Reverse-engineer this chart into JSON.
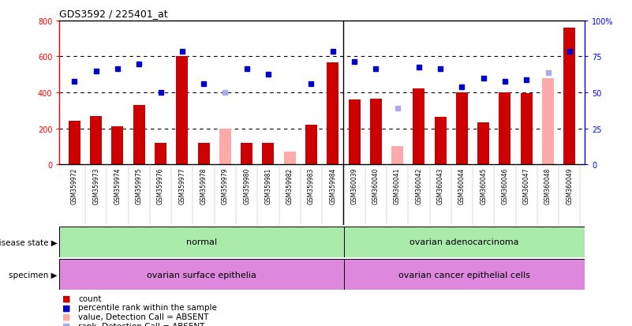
{
  "title": "GDS3592 / 225401_at",
  "samples": [
    "GSM359972",
    "GSM359973",
    "GSM359974",
    "GSM359975",
    "GSM359976",
    "GSM359977",
    "GSM359978",
    "GSM359979",
    "GSM359980",
    "GSM359981",
    "GSM359982",
    "GSM359983",
    "GSM359984",
    "GSM360039",
    "GSM360040",
    "GSM360041",
    "GSM360042",
    "GSM360043",
    "GSM360044",
    "GSM360045",
    "GSM360046",
    "GSM360047",
    "GSM360048",
    "GSM360049"
  ],
  "count_present": [
    240,
    270,
    210,
    330,
    120,
    600,
    120,
    null,
    120,
    120,
    null,
    220,
    565,
    360,
    365,
    null,
    420,
    265,
    400,
    235,
    400,
    395,
    null,
    760
  ],
  "count_absent": [
    null,
    null,
    null,
    null,
    null,
    null,
    null,
    200,
    null,
    null,
    70,
    null,
    null,
    null,
    null,
    100,
    null,
    null,
    null,
    null,
    null,
    null,
    480,
    null
  ],
  "rank_present": [
    460,
    520,
    530,
    560,
    400,
    630,
    450,
    null,
    530,
    500,
    null,
    450,
    630,
    570,
    530,
    null,
    540,
    530,
    430,
    480,
    460,
    470,
    null,
    630
  ],
  "rank_absent": [
    null,
    null,
    null,
    null,
    null,
    null,
    null,
    400,
    null,
    null,
    null,
    null,
    null,
    null,
    null,
    310,
    null,
    null,
    null,
    null,
    null,
    null,
    510,
    null
  ],
  "group1_n": 13,
  "group1_disease": "normal",
  "group2_disease": "ovarian adenocarcinoma",
  "group1_specimen": "ovarian surface epithelia",
  "group2_specimen": "ovarian cancer epithelial cells",
  "bar_color": "#cc0000",
  "bar_absent_color": "#ffaaaa",
  "dot_color": "#0000cc",
  "dot_absent_color": "#aaaaee",
  "green_color": "#aaeaaa",
  "purple_color": "#dd88dd",
  "yticks_left": [
    0,
    200,
    400,
    600,
    800
  ],
  "yticks_right_vals": [
    0,
    25,
    50,
    75,
    100
  ],
  "yticks_right_labels": [
    "0",
    "25",
    "50",
    "75",
    "100%"
  ]
}
